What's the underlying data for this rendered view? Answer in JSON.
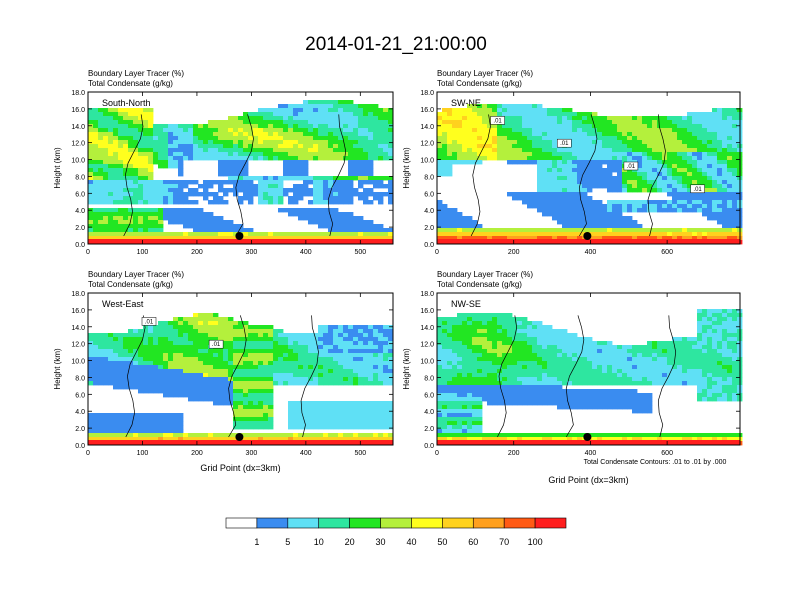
{
  "figure_title": "2014-01-21_21:00:00",
  "footnote": "Total Condensate Contours: .01 to .01 by .000",
  "colors": {
    "bins": [
      "#ffffff",
      "#3a8cf0",
      "#5fe0f5",
      "#2ee6a0",
      "#22e622",
      "#b4f03c",
      "#ffff1e",
      "#ffd21e",
      "#ffa01e",
      "#ff5a14",
      "#ff1e1e"
    ],
    "contour": "#000000",
    "marker": "#000000"
  },
  "colorbar": {
    "labels": [
      "1",
      "5",
      "10",
      "20",
      "30",
      "40",
      "50",
      "60",
      "70",
      "100"
    ]
  },
  "chart_data": [
    {
      "type": "heatmap",
      "title_line1": "Boundary Layer Tracer   (%)",
      "title_line2": "Total Condensate   (g/kg)",
      "panel_label": "South-North",
      "ylabel": "Height (km)",
      "xlabel": "",
      "ylim": [
        0,
        18
      ],
      "xlim": [
        0,
        560
      ],
      "yticks": [
        "0.0",
        "2.0",
        "4.0",
        "6.0",
        "8.0",
        "10.0",
        "12.0",
        "14.0",
        "16.0",
        "18.0"
      ],
      "xticks": [
        0,
        100,
        200,
        300,
        400,
        500
      ],
      "marker_x": 278,
      "contour_labels": []
    },
    {
      "type": "heatmap",
      "title_line1": "Boundary Layer Tracer   (%)",
      "title_line2": "Total Condensate   (g/kg)",
      "panel_label": "SW-NE",
      "ylabel": "Height (km)",
      "xlabel": "",
      "ylim": [
        0,
        18
      ],
      "xlim": [
        0,
        790
      ],
      "yticks": [
        "0.0",
        "2.0",
        "4.0",
        "6.0",
        "8.0",
        "10.0",
        "12.0",
        "14.0",
        "16.0",
        "18.0"
      ],
      "xticks": [
        0,
        200,
        400,
        600
      ],
      "marker_x": 392,
      "contour_labels": [
        ".01",
        ".01",
        ".01",
        ".01"
      ]
    },
    {
      "type": "heatmap",
      "title_line1": "Boundary Layer Tracer   (%)",
      "title_line2": "Total Condensate   (g/kg)",
      "panel_label": "West-East",
      "ylabel": "Height (km)",
      "xlabel": "Grid Point (dx=3km)",
      "ylim": [
        0,
        18
      ],
      "xlim": [
        0,
        560
      ],
      "yticks": [
        "0.0",
        "2.0",
        "4.0",
        "6.0",
        "8.0",
        "10.0",
        "12.0",
        "14.0",
        "16.0",
        "18.0"
      ],
      "xticks": [
        0,
        100,
        200,
        300,
        400,
        500
      ],
      "marker_x": 278,
      "contour_labels": [
        ".01",
        ".01"
      ]
    },
    {
      "type": "heatmap",
      "title_line1": "Boundary Layer Tracer   (%)",
      "title_line2": "Total Condensate   (g/kg)",
      "panel_label": "NW-SE",
      "ylabel": "Height (km)",
      "xlabel": "Grid Point (dx=3km)",
      "ylim": [
        0,
        18
      ],
      "xlim": [
        0,
        790
      ],
      "yticks": [
        "0.0",
        "2.0",
        "4.0",
        "6.0",
        "8.0",
        "10.0",
        "12.0",
        "14.0",
        "16.0",
        "18.0"
      ],
      "xticks": [
        0,
        200,
        400,
        600
      ],
      "marker_x": 392,
      "contour_labels": []
    }
  ]
}
